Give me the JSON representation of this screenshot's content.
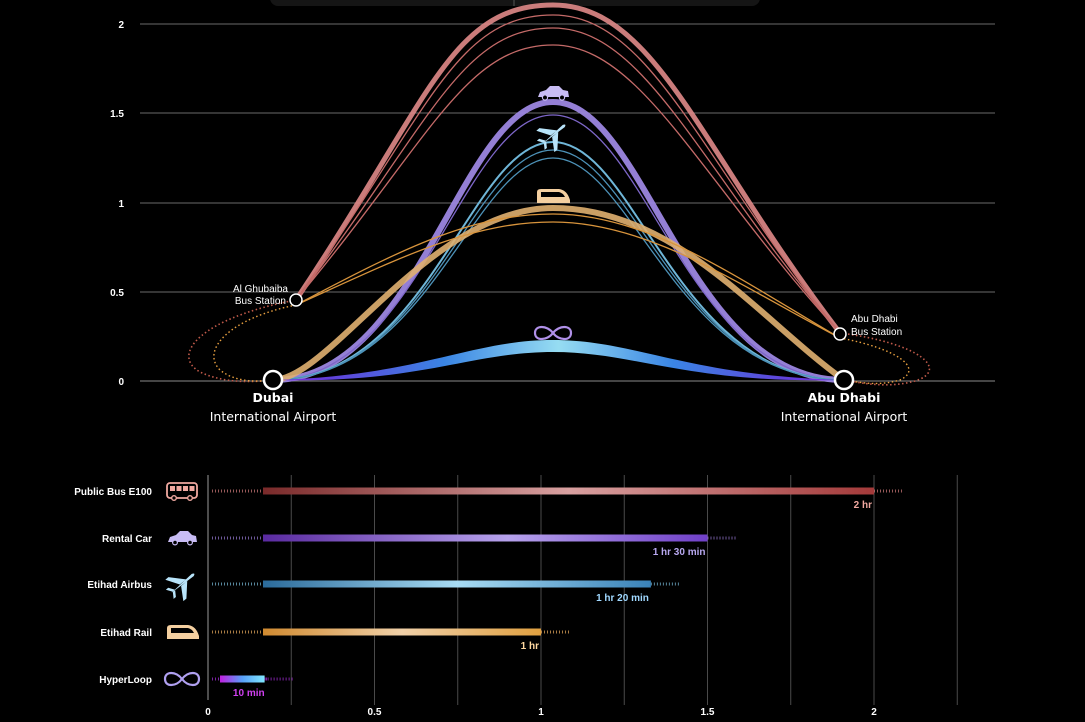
{
  "top_chart": {
    "y_ticks": [
      "0",
      "0.5",
      "1",
      "1.5",
      "2"
    ],
    "origin": {
      "name": "Dubai",
      "sub": "International Airport"
    },
    "destination": {
      "name": "Abu Dhabi",
      "sub": "International Airport"
    },
    "stop_left": {
      "line1": "Al Ghubaiba",
      "line2": "Bus Station"
    },
    "stop_right": {
      "line1": "Abu Dhabi",
      "line2": "Bus Station"
    }
  },
  "chart_data": {
    "type": "bar",
    "orientation": "horizontal",
    "x_ticks": [
      "0",
      "0.5",
      "1",
      "1.5",
      "2"
    ],
    "xlim": [
      0,
      2.35
    ],
    "categories": [
      "Public Bus E100",
      "Rental Car",
      "Etihad Airbus",
      "Etihad Rail",
      "HyperLoop"
    ],
    "values": [
      2,
      1.5,
      1.33,
      1,
      0.17
    ],
    "labels": [
      "2 hr",
      "1 hr 30 min",
      "1 hr 20 min",
      "1 hr",
      "10 min"
    ],
    "icons": [
      "bus-icon",
      "car-icon",
      "airplane-icon",
      "train-icon",
      "infinity-icon"
    ],
    "colors": [
      "#d87f7f",
      "#9d7fdc",
      "#7cc1e0",
      "#f0b060",
      "#b030e8"
    ],
    "label_colors": [
      "#f0a8a0",
      "#b8a8f0",
      "#a0d8ff",
      "#ffd8a0",
      "#d040f0"
    ]
  }
}
